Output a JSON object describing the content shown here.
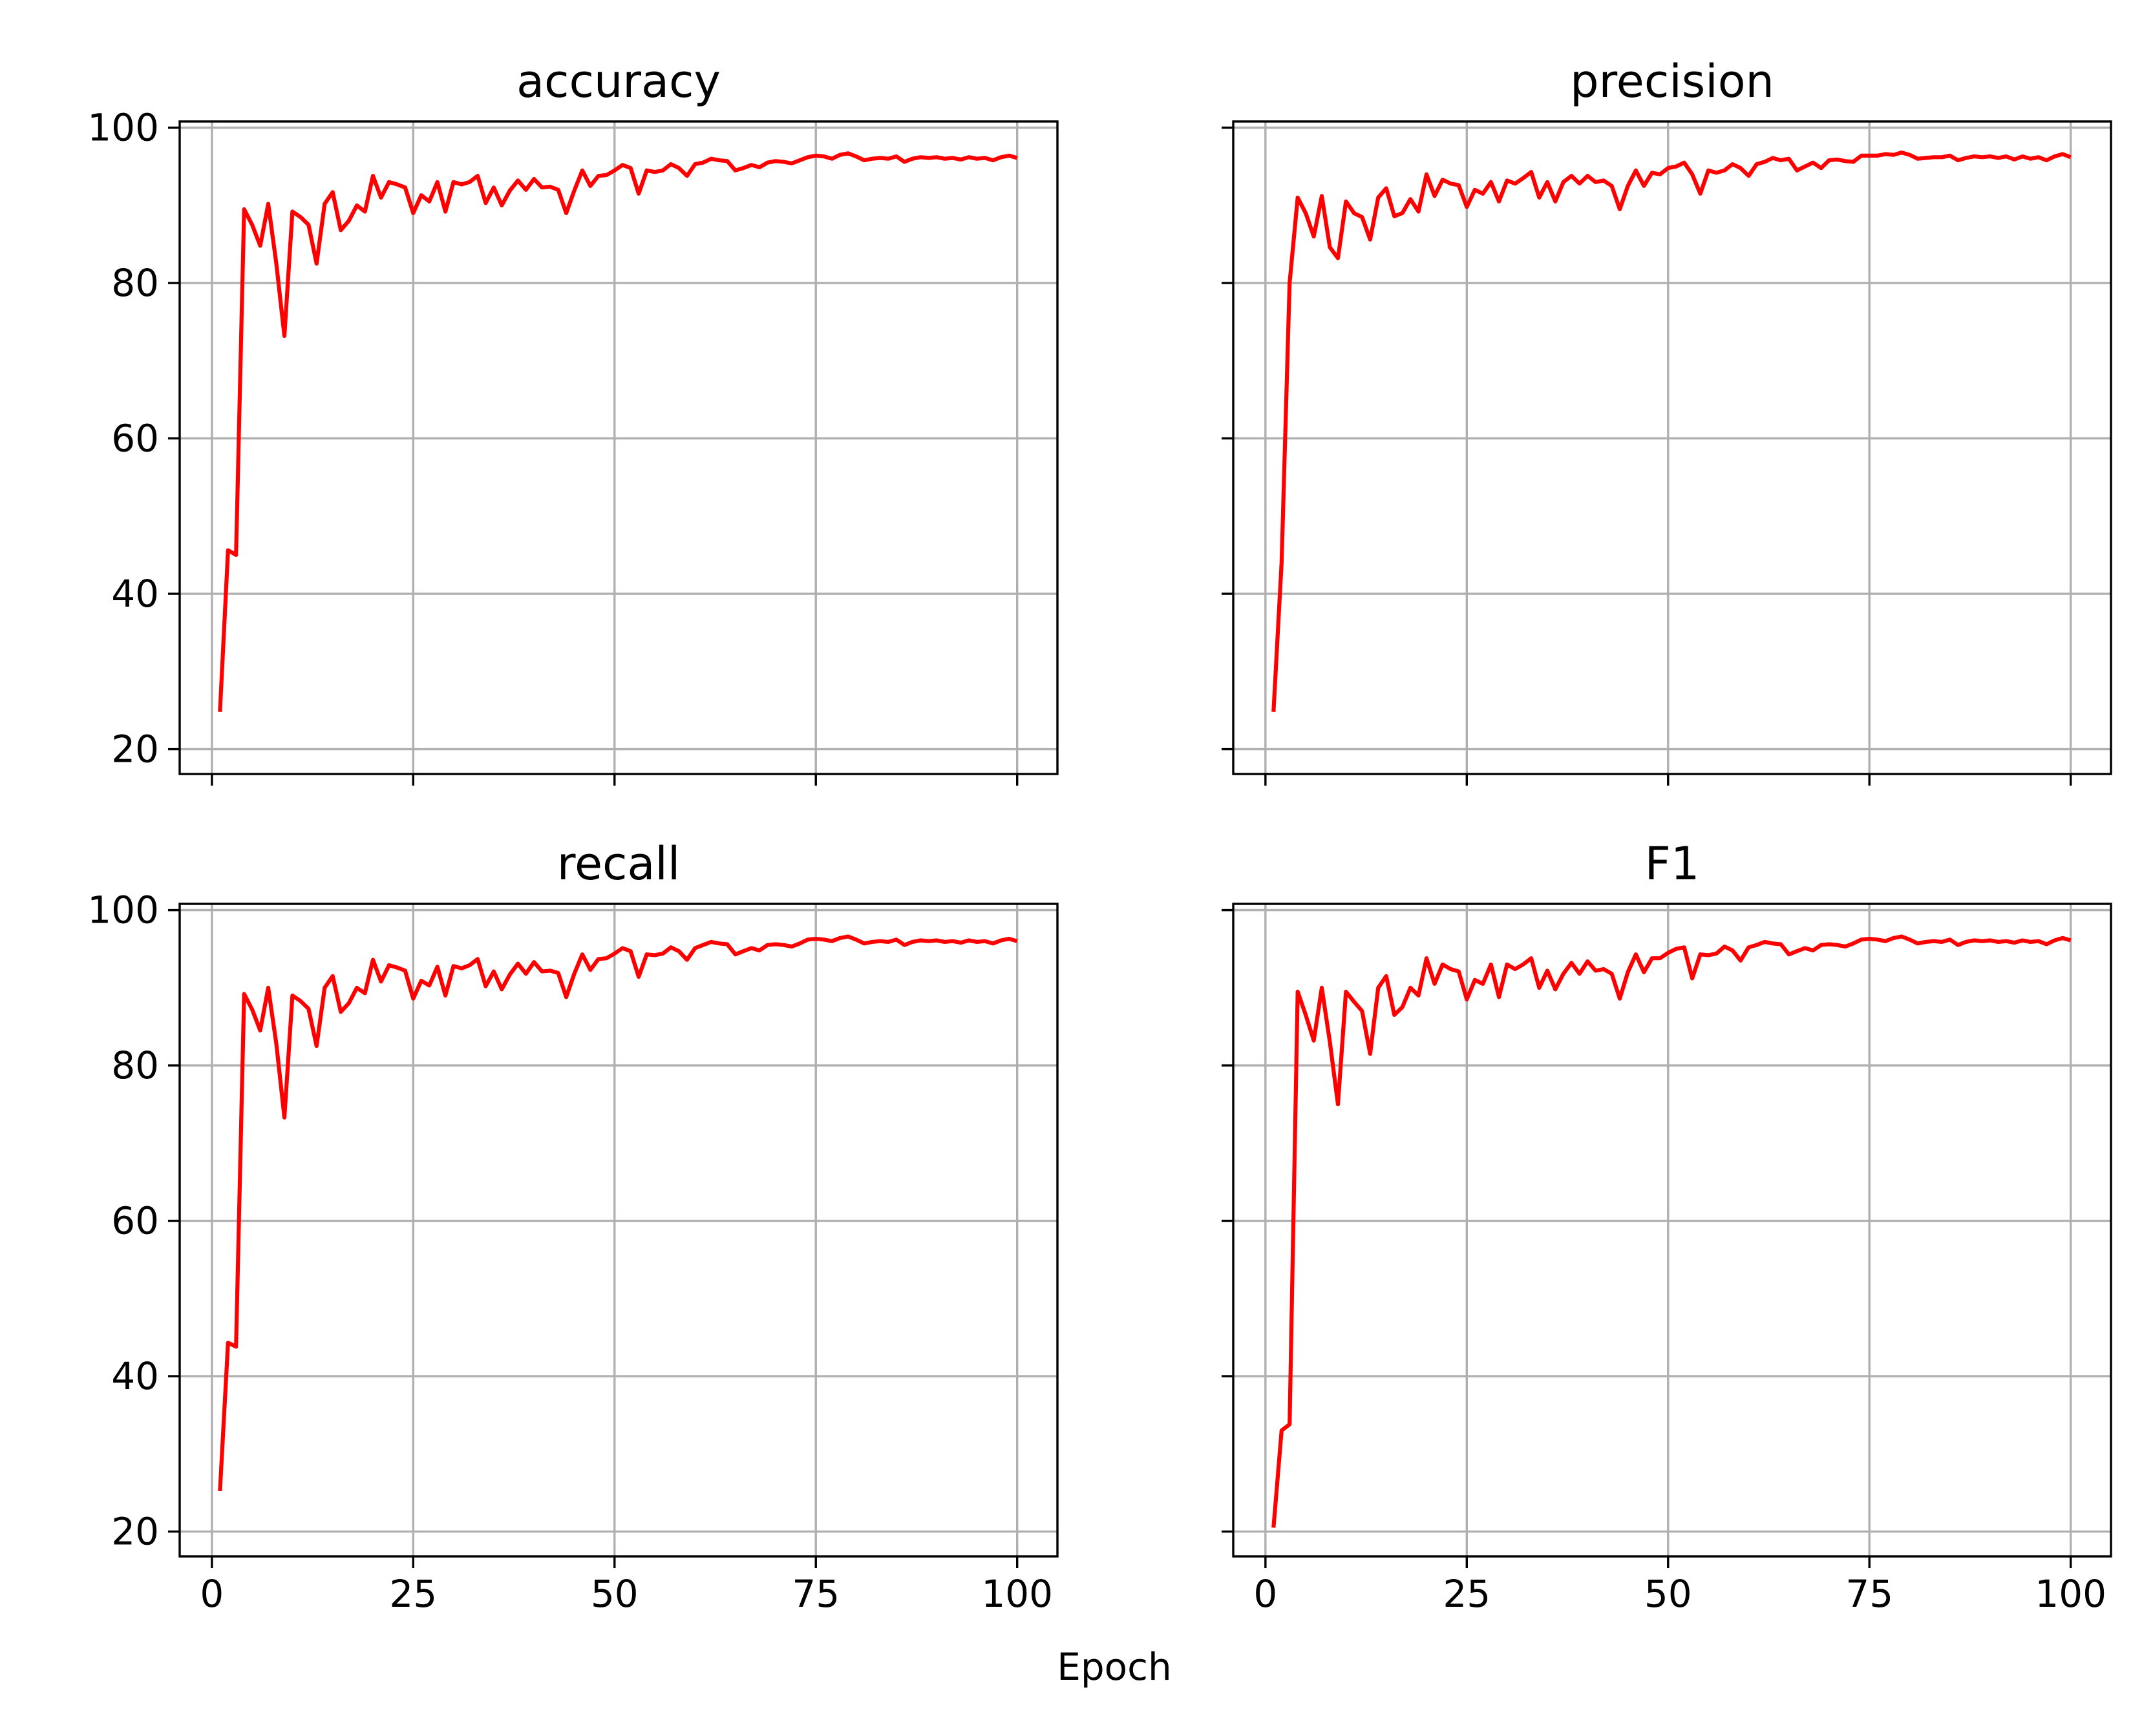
{
  "figure": {
    "shared_xlabel": "Epoch"
  },
  "chart_data": [
    {
      "type": "line",
      "title": "accuracy",
      "xlim": [
        -4,
        105
      ],
      "ylim": [
        16.8,
        100.8
      ],
      "xticks": [
        0,
        25,
        50,
        75,
        100
      ],
      "yticks": [
        20,
        40,
        60,
        80,
        100
      ],
      "show_x_tick_labels": false,
      "show_y_tick_labels": true,
      "grid": true,
      "color": "#ff0000",
      "series": [
        {
          "x": [
            1,
            2,
            3,
            4,
            5,
            6,
            7,
            8,
            9,
            10,
            11,
            12,
            13,
            14,
            15,
            16,
            17,
            18,
            19,
            20,
            21,
            22,
            23,
            24,
            25,
            26,
            27,
            28,
            29,
            30,
            31,
            32,
            33,
            34,
            35,
            36,
            37,
            38,
            39,
            40,
            41,
            42,
            43,
            44,
            45,
            46,
            47,
            48,
            49,
            50,
            51,
            52,
            53,
            54,
            55,
            56,
            57,
            58,
            59,
            60,
            61,
            62,
            63,
            64,
            65,
            66,
            67,
            68,
            69,
            70,
            71,
            72,
            73,
            74,
            75,
            76,
            77,
            78,
            79,
            80,
            81,
            82,
            83,
            84,
            85,
            86,
            87,
            88,
            89,
            90,
            91,
            92,
            93,
            94,
            95,
            96,
            97,
            98,
            99,
            100
          ],
          "values": [
            24.8,
            45.6,
            45.0,
            89.5,
            87.5,
            84.8,
            90.2,
            82.5,
            73.2,
            89.2,
            88.5,
            87.5,
            82.5,
            90.2,
            91.7,
            86.8,
            88.0,
            90.0,
            89.2,
            93.8,
            91.0,
            93.0,
            92.7,
            92.3,
            89.0,
            91.3,
            90.5,
            93.0,
            89.2,
            93.0,
            92.7,
            93.0,
            93.8,
            90.3,
            92.3,
            90.0,
            91.9,
            93.2,
            92.0,
            93.4,
            92.3,
            92.4,
            92.0,
            89.0,
            91.9,
            94.5,
            92.5,
            93.8,
            93.9,
            94.5,
            95.2,
            94.8,
            91.5,
            94.5,
            94.3,
            94.5,
            95.3,
            94.8,
            93.8,
            95.3,
            95.5,
            96.0,
            95.8,
            95.7,
            94.5,
            94.8,
            95.2,
            94.9,
            95.5,
            95.7,
            95.6,
            95.4,
            95.8,
            96.2,
            96.4,
            96.3,
            96.0,
            96.5,
            96.7,
            96.3,
            95.8,
            96.0,
            96.1,
            96.0,
            96.3,
            95.6,
            96.0,
            96.2,
            96.1,
            96.2,
            96.0,
            96.1,
            95.9,
            96.2,
            96.0,
            96.1,
            95.8,
            96.2,
            96.4,
            96.1
          ]
        }
      ]
    },
    {
      "type": "line",
      "title": "precision",
      "xlim": [
        -4,
        105
      ],
      "ylim": [
        16.8,
        100.8
      ],
      "xticks": [
        0,
        25,
        50,
        75,
        100
      ],
      "yticks": [
        20,
        40,
        60,
        80,
        100
      ],
      "show_x_tick_labels": false,
      "show_y_tick_labels": false,
      "grid": true,
      "color": "#ff0000",
      "series": [
        {
          "x": [
            1,
            2,
            3,
            4,
            5,
            6,
            7,
            8,
            9,
            10,
            11,
            12,
            13,
            14,
            15,
            16,
            17,
            18,
            19,
            20,
            21,
            22,
            23,
            24,
            25,
            26,
            27,
            28,
            29,
            30,
            31,
            32,
            33,
            34,
            35,
            36,
            37,
            38,
            39,
            40,
            41,
            42,
            43,
            44,
            45,
            46,
            47,
            48,
            49,
            50,
            51,
            52,
            53,
            54,
            55,
            56,
            57,
            58,
            59,
            60,
            61,
            62,
            63,
            64,
            65,
            66,
            67,
            68,
            69,
            70,
            71,
            72,
            73,
            74,
            75,
            76,
            77,
            78,
            79,
            80,
            81,
            82,
            83,
            84,
            85,
            86,
            87,
            88,
            89,
            90,
            91,
            92,
            93,
            94,
            95,
            96,
            97,
            98,
            99,
            100
          ],
          "values": [
            24.8,
            44.0,
            80.0,
            91.0,
            89.0,
            86.0,
            91.2,
            84.6,
            83.2,
            90.5,
            89.0,
            88.5,
            85.6,
            91.0,
            92.2,
            88.6,
            89.0,
            90.8,
            89.2,
            94.0,
            91.2,
            93.3,
            92.8,
            92.6,
            89.8,
            92.0,
            91.5,
            93.0,
            90.5,
            93.2,
            92.8,
            93.5,
            94.3,
            91.0,
            93.0,
            90.5,
            93.0,
            93.8,
            92.8,
            93.8,
            93.0,
            93.2,
            92.5,
            89.5,
            92.5,
            94.5,
            92.5,
            94.2,
            94.0,
            94.8,
            95.0,
            95.5,
            94.0,
            91.5,
            94.5,
            94.2,
            94.5,
            95.3,
            94.8,
            93.8,
            95.3,
            95.6,
            96.1,
            95.8,
            96.0,
            94.5,
            95.0,
            95.5,
            94.8,
            95.8,
            95.9,
            95.7,
            95.6,
            96.4,
            96.4,
            96.4,
            96.6,
            96.5,
            96.8,
            96.5,
            96.0,
            96.1,
            96.2,
            96.2,
            96.4,
            95.8,
            96.1,
            96.3,
            96.2,
            96.3,
            96.1,
            96.3,
            95.9,
            96.3,
            96.0,
            96.2,
            95.8,
            96.3,
            96.6,
            96.2
          ]
        }
      ]
    },
    {
      "type": "line",
      "title": "recall",
      "xlim": [
        -4,
        105
      ],
      "ylim": [
        16.8,
        100.8
      ],
      "xticks": [
        0,
        25,
        50,
        75,
        100
      ],
      "yticks": [
        20,
        40,
        60,
        80,
        100
      ],
      "show_x_tick_labels": true,
      "show_y_tick_labels": true,
      "grid": true,
      "color": "#ff0000",
      "series": [
        {
          "x": [
            1,
            2,
            3,
            4,
            5,
            6,
            7,
            8,
            9,
            10,
            11,
            12,
            13,
            14,
            15,
            16,
            17,
            18,
            19,
            20,
            21,
            22,
            23,
            24,
            25,
            26,
            27,
            28,
            29,
            30,
            31,
            32,
            33,
            34,
            35,
            36,
            37,
            38,
            39,
            40,
            41,
            42,
            43,
            44,
            45,
            46,
            47,
            48,
            49,
            50,
            51,
            52,
            53,
            54,
            55,
            56,
            57,
            58,
            59,
            60,
            61,
            62,
            63,
            64,
            65,
            66,
            67,
            68,
            69,
            70,
            71,
            72,
            73,
            74,
            75,
            76,
            77,
            78,
            79,
            80,
            81,
            82,
            83,
            84,
            85,
            86,
            87,
            88,
            89,
            90,
            91,
            92,
            93,
            94,
            95,
            96,
            97,
            98,
            99,
            100
          ],
          "values": [
            25.2,
            44.3,
            43.8,
            89.2,
            87.2,
            84.5,
            90.0,
            82.8,
            73.3,
            89.0,
            88.3,
            87.3,
            82.5,
            90.0,
            91.5,
            86.9,
            88.0,
            90.0,
            89.3,
            93.6,
            90.8,
            92.9,
            92.6,
            92.2,
            88.6,
            90.9,
            90.3,
            92.7,
            89.0,
            92.8,
            92.5,
            92.9,
            93.7,
            90.2,
            92.1,
            89.8,
            91.7,
            93.1,
            91.8,
            93.3,
            92.1,
            92.2,
            91.9,
            88.8,
            91.8,
            94.3,
            92.3,
            93.7,
            93.8,
            94.4,
            95.1,
            94.7,
            91.4,
            94.3,
            94.2,
            94.4,
            95.2,
            94.7,
            93.6,
            95.1,
            95.5,
            95.9,
            95.7,
            95.6,
            94.3,
            94.7,
            95.1,
            94.8,
            95.5,
            95.6,
            95.5,
            95.3,
            95.7,
            96.2,
            96.3,
            96.2,
            96.0,
            96.4,
            96.6,
            96.2,
            95.7,
            95.9,
            96.0,
            95.9,
            96.2,
            95.5,
            95.9,
            96.1,
            96.0,
            96.1,
            95.9,
            96.0,
            95.8,
            96.1,
            95.9,
            96.0,
            95.7,
            96.1,
            96.3,
            96.0
          ]
        }
      ]
    },
    {
      "type": "line",
      "title": "F1",
      "xlim": [
        -4,
        105
      ],
      "ylim": [
        16.8,
        100.8
      ],
      "xticks": [
        0,
        25,
        50,
        75,
        100
      ],
      "yticks": [
        20,
        40,
        60,
        80,
        100
      ],
      "show_x_tick_labels": true,
      "show_y_tick_labels": false,
      "grid": true,
      "color": "#ff0000",
      "series": [
        {
          "x": [
            1,
            2,
            3,
            4,
            5,
            6,
            7,
            8,
            9,
            10,
            11,
            12,
            13,
            14,
            15,
            16,
            17,
            18,
            19,
            20,
            21,
            22,
            23,
            24,
            25,
            26,
            27,
            28,
            29,
            30,
            31,
            32,
            33,
            34,
            35,
            36,
            37,
            38,
            39,
            40,
            41,
            42,
            43,
            44,
            45,
            46,
            47,
            48,
            49,
            50,
            51,
            52,
            53,
            54,
            55,
            56,
            57,
            58,
            59,
            60,
            61,
            62,
            63,
            64,
            65,
            66,
            67,
            68,
            69,
            70,
            71,
            72,
            73,
            74,
            75,
            76,
            77,
            78,
            79,
            80,
            81,
            82,
            83,
            84,
            85,
            86,
            87,
            88,
            89,
            90,
            91,
            92,
            93,
            94,
            95,
            96,
            97,
            98,
            99,
            100
          ],
          "values": [
            20.5,
            33.0,
            33.8,
            89.5,
            86.5,
            83.2,
            90.0,
            83.0,
            75.0,
            89.5,
            88.2,
            87.0,
            81.5,
            90.0,
            91.5,
            86.5,
            87.5,
            90.0,
            89.0,
            93.8,
            90.5,
            93.0,
            92.4,
            92.1,
            88.5,
            91.0,
            90.5,
            93.0,
            88.8,
            93.0,
            92.4,
            93.0,
            93.8,
            90.0,
            92.2,
            89.8,
            91.8,
            93.2,
            91.8,
            93.4,
            92.2,
            92.4,
            91.8,
            88.6,
            92.0,
            94.3,
            92.0,
            93.8,
            93.8,
            94.5,
            95.0,
            95.2,
            91.2,
            94.3,
            94.2,
            94.4,
            95.3,
            94.8,
            93.5,
            95.2,
            95.5,
            95.9,
            95.7,
            95.6,
            94.3,
            94.7,
            95.1,
            94.8,
            95.5,
            95.6,
            95.5,
            95.3,
            95.7,
            96.2,
            96.3,
            96.2,
            96.0,
            96.4,
            96.6,
            96.2,
            95.7,
            95.9,
            96.0,
            95.9,
            96.2,
            95.5,
            95.9,
            96.1,
            96.0,
            96.1,
            95.9,
            96.0,
            95.8,
            96.1,
            95.9,
            96.0,
            95.6,
            96.1,
            96.4,
            96.1
          ]
        }
      ]
    }
  ]
}
